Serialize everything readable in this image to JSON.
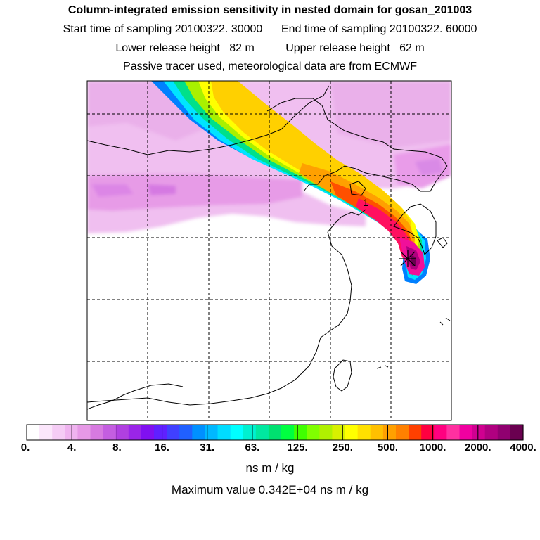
{
  "header": {
    "title": "Column-integrated emission sensitivity in nested domain for gosan_201003",
    "sampling": "Start time of sampling 20100322. 30000      End time of sampling 20100322. 60000",
    "release": "Lower release height   82 m          Upper release height   62 m",
    "tracer": "Passive tracer used, meteorological data are from ECMWF"
  },
  "map": {
    "marker_label": "1",
    "station_marker": "cross-icon"
  },
  "colorbar": {
    "tick_labels": [
      "0.",
      "4.",
      "8.",
      "16.",
      "31.",
      "63.",
      "125.",
      "250.",
      "500.",
      "1000.",
      "2000.",
      "4000."
    ],
    "colors": [
      "#ffffff",
      "#fbe6fb",
      "#f5ccf5",
      "#efb3ef",
      "#e699e6",
      "#d77ae0",
      "#c45ee0",
      "#b040e0",
      "#9a25e8",
      "#8010f0",
      "#6020ff",
      "#4040ff",
      "#2060ff",
      "#0090ff",
      "#00b8ff",
      "#00dcff",
      "#00ffff",
      "#00f0d0",
      "#00e8a0",
      "#00e070",
      "#00ff40",
      "#40ff00",
      "#80ff00",
      "#b0f000",
      "#d8f000",
      "#ffff00",
      "#ffe000",
      "#ffc000",
      "#ffa000",
      "#ff8000",
      "#ff4000",
      "#ff0040",
      "#ff0080",
      "#ff30a0",
      "#f000a0",
      "#d00090",
      "#b00080",
      "#900070",
      "#6a0050"
    ],
    "units": "ns m / kg",
    "max_value": "Maximum value  0.342E+04 ns m / kg"
  }
}
